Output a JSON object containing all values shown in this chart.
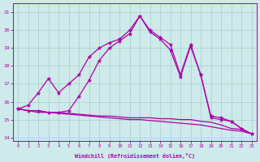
{
  "xlabel": "Windchill (Refroidissement éolien,°C)",
  "x_values": [
    0,
    1,
    2,
    3,
    4,
    5,
    6,
    7,
    8,
    9,
    10,
    11,
    12,
    13,
    14,
    15,
    16,
    17,
    18,
    19,
    20,
    21,
    22,
    23
  ],
  "line_upper1": [
    15.6,
    15.8,
    16.5,
    17.3,
    16.5,
    17.0,
    17.5,
    18.5,
    19.0,
    19.3,
    19.5,
    20.0,
    20.8,
    20.0,
    19.6,
    19.2,
    17.5,
    19.2,
    17.5,
    15.2,
    15.1,
    14.9,
    14.5,
    14.2
  ],
  "line_upper2": [
    15.6,
    15.5,
    15.5,
    15.4,
    15.4,
    15.5,
    16.3,
    17.2,
    18.3,
    19.0,
    19.4,
    19.8,
    20.8,
    19.9,
    19.5,
    18.9,
    17.4,
    19.1,
    17.5,
    15.1,
    15.0,
    14.9,
    14.5,
    14.2
  ],
  "line_flat1": [
    15.6,
    15.5,
    15.5,
    15.4,
    15.4,
    15.35,
    15.3,
    15.25,
    15.2,
    15.2,
    15.15,
    15.1,
    15.1,
    15.1,
    15.05,
    15.05,
    15.0,
    15.0,
    14.9,
    14.85,
    14.7,
    14.5,
    14.45,
    14.2
  ],
  "line_flat2": [
    15.6,
    15.5,
    15.4,
    15.4,
    15.35,
    15.3,
    15.25,
    15.2,
    15.15,
    15.1,
    15.05,
    15.0,
    15.0,
    14.95,
    14.9,
    14.85,
    14.8,
    14.75,
    14.7,
    14.6,
    14.5,
    14.4,
    14.35,
    14.2
  ],
  "line_color": "#aa00aa",
  "bg_color": "#ceeaea",
  "grid_color": "#aacccc",
  "ylim": [
    13.8,
    21.5
  ],
  "yticks": [
    14,
    15,
    16,
    17,
    18,
    19,
    20,
    21
  ],
  "xlim": [
    -0.5,
    23.5
  ]
}
